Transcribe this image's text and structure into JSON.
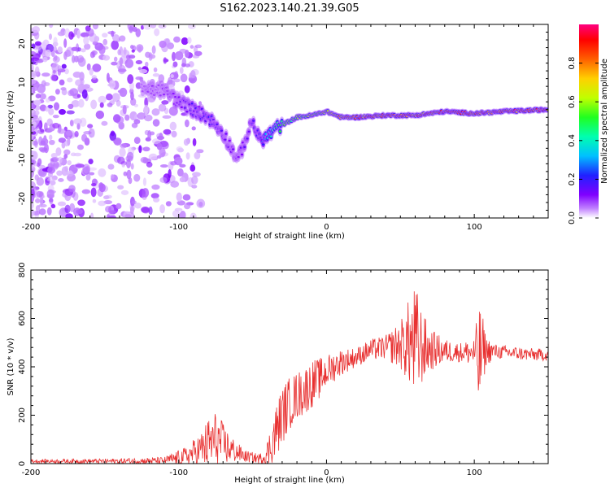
{
  "title": "S162.2023.140.21.39.G05",
  "chart_data": [
    {
      "type": "heatmap",
      "xlabel": "Height of straight line (km)",
      "ylabel": "Frequency (Hz)",
      "xlim": [
        -200,
        150
      ],
      "ylim": [
        -25,
        25
      ],
      "x_ticks": [
        -200,
        -100,
        0,
        100
      ],
      "y_ticks": [
        -20,
        -10,
        0,
        10,
        20
      ],
      "colorbar": {
        "label": "Normalized spectral amplitude",
        "range": [
          0,
          1
        ],
        "ticks": [
          "0.0",
          "0.2",
          "0.4",
          "0.6",
          "0.8"
        ],
        "tick_values": [
          0,
          0.2,
          0.4,
          0.6,
          0.8
        ]
      },
      "ridge": {
        "x": [
          -125,
          -110,
          -100,
          -90,
          -80,
          -70,
          -60,
          -50,
          -45,
          -40,
          -35,
          -30,
          -20,
          -10,
          0,
          10,
          20,
          40,
          60,
          80,
          100,
          120,
          150
        ],
        "y": [
          8,
          8,
          5,
          3,
          1,
          -3,
          -10,
          0,
          -5,
          -4,
          -2,
          -1,
          1,
          1.5,
          2.5,
          1,
          1,
          1.5,
          1.5,
          2.5,
          2,
          2.5,
          3
        ],
        "amplitude": [
          0.08,
          0.1,
          0.15,
          0.18,
          0.2,
          0.15,
          0.12,
          0.2,
          0.22,
          0.35,
          0.45,
          0.55,
          0.6,
          0.7,
          0.75,
          0.85,
          0.9,
          0.95,
          0.9,
          0.98,
          0.95,
          0.98,
          0.95
        ]
      }
    },
    {
      "type": "line",
      "xlabel": "Height of straight line (km)",
      "ylabel": "SNR (10 * v/v)",
      "xlim": [
        -200,
        150
      ],
      "ylim": [
        0,
        800
      ],
      "x_ticks": [
        -200,
        -100,
        0,
        100
      ],
      "y_ticks": [
        0,
        200,
        400,
        600,
        800
      ],
      "color": "#e83030",
      "envelope_x": [
        -200,
        -150,
        -110,
        -95,
        -85,
        -75,
        -65,
        -55,
        -45,
        -40,
        -35,
        -30,
        -25,
        -20,
        -15,
        -10,
        -5,
        0,
        10,
        20,
        30,
        40,
        50,
        55,
        60,
        65,
        70,
        80,
        90,
        100,
        103,
        105,
        110,
        120,
        130,
        140,
        150
      ],
      "envelope_y": [
        10,
        10,
        12,
        30,
        60,
        100,
        60,
        30,
        20,
        40,
        120,
        200,
        250,
        280,
        300,
        330,
        350,
        380,
        420,
        440,
        470,
        480,
        490,
        500,
        490,
        480,
        470,
        465,
        460,
        460,
        420,
        460,
        465,
        460,
        455,
        450,
        450
      ],
      "noise_x": [
        -200,
        -150,
        -110,
        -95,
        -85,
        -80,
        -75,
        -70,
        -65,
        -60,
        -55,
        -45,
        -40,
        -35,
        -30,
        -25,
        -20,
        -10,
        0,
        20,
        40,
        50,
        55,
        58,
        60,
        63,
        65,
        70,
        80,
        90,
        100,
        103,
        105,
        108,
        115,
        150
      ],
      "noise_y": [
        8,
        10,
        15,
        40,
        70,
        110,
        120,
        90,
        60,
        40,
        25,
        20,
        60,
        110,
        120,
        110,
        100,
        100,
        70,
        40,
        50,
        100,
        170,
        200,
        260,
        190,
        150,
        90,
        50,
        40,
        60,
        240,
        180,
        60,
        30,
        25
      ]
    }
  ]
}
